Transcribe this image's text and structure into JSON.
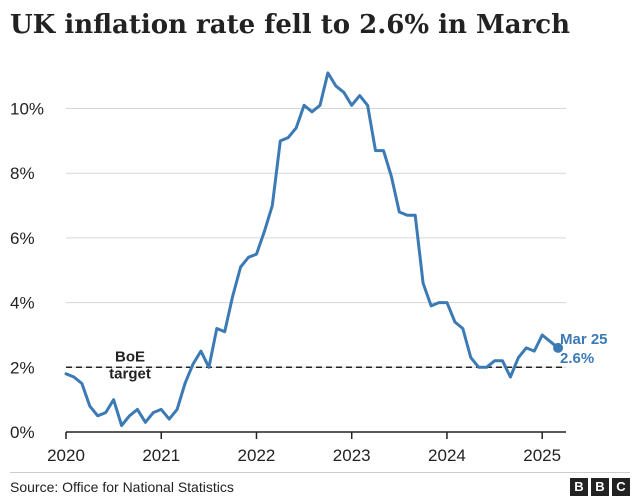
{
  "chart_data": {
    "type": "line",
    "title": "UK inflation rate fell to 2.6% in March",
    "source": "Source: Office for National Statistics",
    "logo": [
      "B",
      "B",
      "C"
    ],
    "y_ticks": [
      {
        "value": 0,
        "label": "0%"
      },
      {
        "value": 2,
        "label": "2%"
      },
      {
        "value": 4,
        "label": "4%"
      },
      {
        "value": 6,
        "label": "6%"
      },
      {
        "value": 8,
        "label": "8%"
      },
      {
        "value": 10,
        "label": "10%"
      }
    ],
    "x_ticks": [
      {
        "value": "2020-01",
        "label": "2020"
      },
      {
        "value": "2021-01",
        "label": "2021"
      },
      {
        "value": "2022-01",
        "label": "2022"
      },
      {
        "value": "2023-01",
        "label": "2023"
      },
      {
        "value": "2024-01",
        "label": "2024"
      },
      {
        "value": "2025-01",
        "label": "2025"
      }
    ],
    "ylim": [
      0,
      11.5
    ],
    "xlim": [
      "2020-01",
      "2025-04"
    ],
    "grid": true,
    "line_color": "#3c7ab6",
    "target_line": {
      "value": 2,
      "label_lines": [
        "BoE",
        "target"
      ],
      "color": "#222222"
    },
    "callout": {
      "label_lines": [
        "Mar 25",
        "2.6%"
      ],
      "color": "#3c7ab6"
    },
    "series": [
      {
        "x": [
          "2020-01",
          "2020-02",
          "2020-03",
          "2020-04",
          "2020-05",
          "2020-06",
          "2020-07",
          "2020-08",
          "2020-09",
          "2020-10",
          "2020-11",
          "2020-12",
          "2021-01",
          "2021-02",
          "2021-03",
          "2021-04",
          "2021-05",
          "2021-06",
          "2021-07",
          "2021-08",
          "2021-09",
          "2021-10",
          "2021-11",
          "2021-12",
          "2022-01",
          "2022-02",
          "2022-03",
          "2022-04",
          "2022-05",
          "2022-06",
          "2022-07",
          "2022-08",
          "2022-09",
          "2022-10",
          "2022-11",
          "2022-12",
          "2023-01",
          "2023-02",
          "2023-03",
          "2023-04",
          "2023-05",
          "2023-06",
          "2023-07",
          "2023-08",
          "2023-09",
          "2023-10",
          "2023-11",
          "2023-12",
          "2024-01",
          "2024-02",
          "2024-03",
          "2024-04",
          "2024-05",
          "2024-06",
          "2024-07",
          "2024-08",
          "2024-09",
          "2024-10",
          "2024-11",
          "2024-12",
          "2025-01",
          "2025-02",
          "2025-03"
        ],
        "values": [
          1.8,
          1.7,
          1.5,
          0.8,
          0.5,
          0.6,
          1.0,
          0.2,
          0.5,
          0.7,
          0.3,
          0.6,
          0.7,
          0.4,
          0.7,
          1.5,
          2.1,
          2.5,
          2.0,
          3.2,
          3.1,
          4.2,
          5.1,
          5.4,
          5.5,
          6.2,
          7.0,
          9.0,
          9.1,
          9.4,
          10.1,
          9.9,
          10.1,
          11.1,
          10.7,
          10.5,
          10.1,
          10.4,
          10.1,
          8.7,
          8.7,
          7.9,
          6.8,
          6.7,
          6.7,
          4.6,
          3.9,
          4.0,
          4.0,
          3.4,
          3.2,
          2.3,
          2.0,
          2.0,
          2.2,
          2.2,
          1.7,
          2.3,
          2.6,
          2.5,
          3.0,
          2.8,
          2.6
        ]
      }
    ]
  }
}
